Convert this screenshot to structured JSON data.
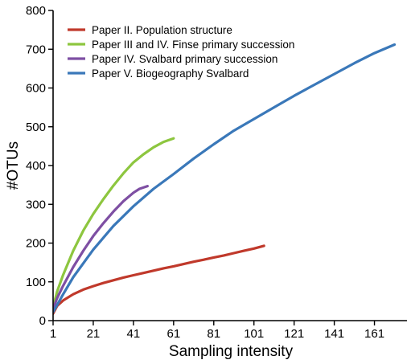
{
  "chart_data": {
    "type": "line",
    "title": "",
    "xlabel": "Sampling intensity",
    "ylabel": "#OTUs",
    "xlim": [
      1,
      176
    ],
    "ylim": [
      0,
      800
    ],
    "xticks": [
      "1",
      "21",
      "41",
      "61",
      "81",
      "101",
      "121",
      "141",
      "161"
    ],
    "yticks": [
      "0",
      "100",
      "200",
      "300",
      "400",
      "500",
      "600",
      "700",
      "800"
    ],
    "grid": false,
    "legend_position": "top-left",
    "series": [
      {
        "name": "Paper II. Population structure",
        "color": "#c0392b",
        "points": [
          [
            1,
            18
          ],
          [
            3,
            38
          ],
          [
            6,
            52
          ],
          [
            11,
            68
          ],
          [
            16,
            80
          ],
          [
            21,
            89
          ],
          [
            26,
            97
          ],
          [
            31,
            104
          ],
          [
            36,
            111
          ],
          [
            41,
            117
          ],
          [
            46,
            123
          ],
          [
            51,
            129
          ],
          [
            56,
            135
          ],
          [
            61,
            140
          ],
          [
            66,
            146
          ],
          [
            71,
            152
          ],
          [
            76,
            157
          ],
          [
            81,
            163
          ],
          [
            86,
            168
          ],
          [
            91,
            174
          ],
          [
            96,
            180
          ],
          [
            101,
            186
          ],
          [
            106,
            193
          ]
        ]
      },
      {
        "name": "Paper III and IV. Finse primary succession",
        "color": "#8dc63f",
        "points": [
          [
            1,
            35
          ],
          [
            3,
            75
          ],
          [
            6,
            118
          ],
          [
            11,
            180
          ],
          [
            16,
            232
          ],
          [
            21,
            275
          ],
          [
            26,
            313
          ],
          [
            31,
            348
          ],
          [
            36,
            380
          ],
          [
            41,
            408
          ],
          [
            46,
            429
          ],
          [
            51,
            447
          ],
          [
            56,
            461
          ],
          [
            61,
            470
          ]
        ]
      },
      {
        "name": "Paper IV. Svalbard primary succession",
        "color": "#7e4fa3",
        "points": [
          [
            1,
            30
          ],
          [
            3,
            58
          ],
          [
            6,
            90
          ],
          [
            11,
            138
          ],
          [
            16,
            180
          ],
          [
            21,
            218
          ],
          [
            26,
            251
          ],
          [
            31,
            281
          ],
          [
            36,
            308
          ],
          [
            41,
            330
          ],
          [
            44,
            340
          ],
          [
            48,
            347
          ]
        ]
      },
      {
        "name": "Paper V. Biogeography Svalbard",
        "color": "#3a78b9",
        "points": [
          [
            1,
            22
          ],
          [
            6,
            68
          ],
          [
            11,
            112
          ],
          [
            21,
            183
          ],
          [
            31,
            244
          ],
          [
            41,
            295
          ],
          [
            51,
            340
          ],
          [
            61,
            378
          ],
          [
            71,
            418
          ],
          [
            81,
            455
          ],
          [
            91,
            490
          ],
          [
            101,
            520
          ],
          [
            111,
            550
          ],
          [
            121,
            580
          ],
          [
            131,
            608
          ],
          [
            141,
            636
          ],
          [
            151,
            664
          ],
          [
            161,
            690
          ],
          [
            171,
            712
          ]
        ]
      }
    ]
  }
}
